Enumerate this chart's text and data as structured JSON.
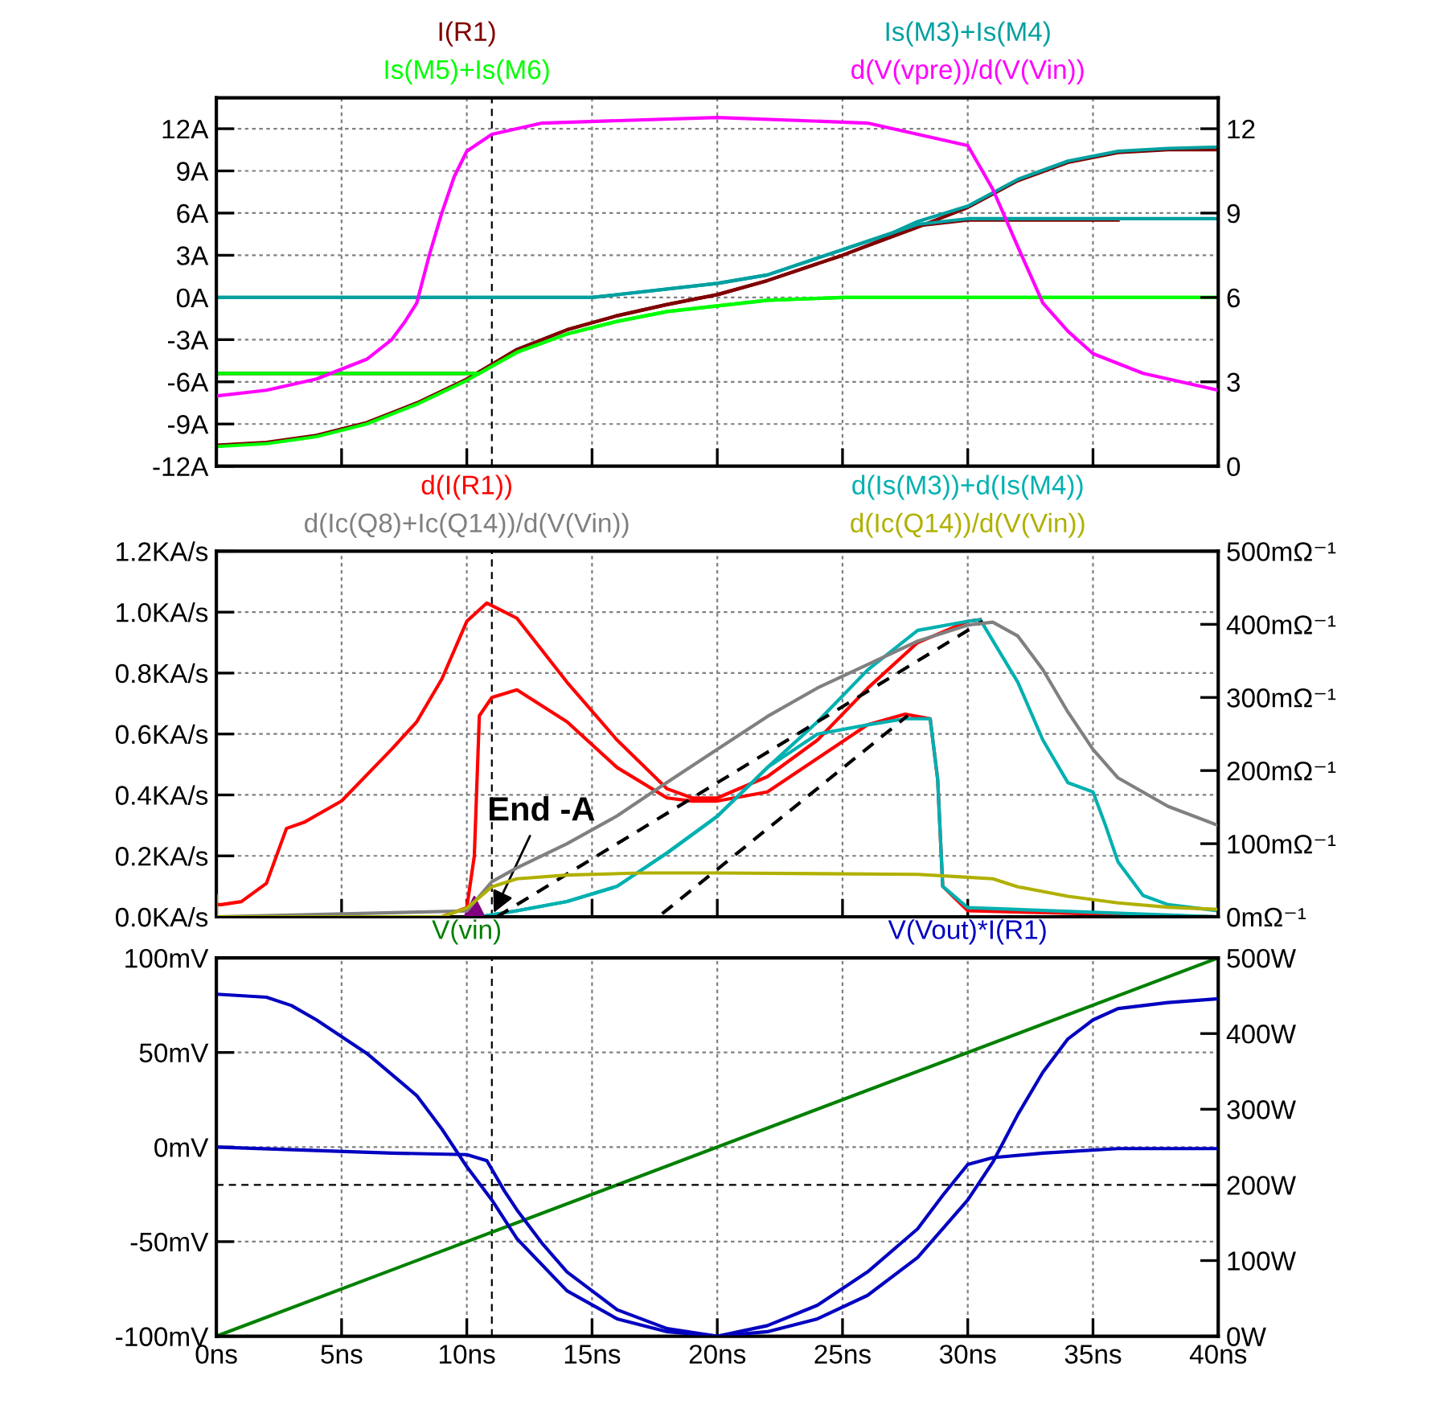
{
  "chart_data": [
    {
      "type": "line",
      "xlim": [
        0,
        40
      ],
      "xticks": [
        {
          "value": 0,
          "label": null
        },
        {
          "value": 5,
          "label": null
        },
        {
          "value": 10,
          "label": null
        },
        {
          "value": 15,
          "label": null
        },
        {
          "value": 20,
          "label": null
        },
        {
          "value": 25,
          "label": null
        },
        {
          "value": 30,
          "label": null
        },
        {
          "value": 35,
          "label": null
        },
        {
          "value": 40,
          "label": null
        }
      ],
      "ylim": [
        -12,
        14.2
      ],
      "yticks": [
        {
          "value": -12,
          "label": "-12A"
        },
        {
          "value": -9,
          "label": "-9A"
        },
        {
          "value": -6,
          "label": "-6A"
        },
        {
          "value": -3,
          "label": "-3A"
        },
        {
          "value": 0,
          "label": "0A"
        },
        {
          "value": 3,
          "label": "3A"
        },
        {
          "value": 6,
          "label": "6A"
        },
        {
          "value": 9,
          "label": "9A"
        },
        {
          "value": 12,
          "label": "12A"
        }
      ],
      "y2lim": [
        0,
        13.1
      ],
      "y2ticks": [
        0,
        3,
        6,
        9,
        12
      ],
      "grid": true,
      "legend": "top",
      "tick_labels": "y",
      "ref_lines": [
        {
          "axis": "x",
          "value": 11,
          "color": "#000000",
          "line_style": "dashed"
        }
      ],
      "series": [
        {
          "name": "I(R1)",
          "color": "#800000",
          "x": [
            0,
            2,
            4,
            6,
            8,
            10,
            12,
            14,
            16,
            18,
            20,
            22,
            25,
            28,
            30,
            32,
            34,
            36,
            38,
            40
          ],
          "values": [
            -10.5,
            -10.3,
            -9.8,
            -8.9,
            -7.5,
            -5.8,
            -3.7,
            -2.3,
            -1.3,
            -0.5,
            0.2,
            1.2,
            3.0,
            5.0,
            6.4,
            8.3,
            9.6,
            10.3,
            10.5,
            10.5
          ]
        },
        {
          "color": "#800000",
          "x": [
            0,
            10.5,
            11,
            12,
            14,
            16,
            18,
            20,
            22,
            25,
            28,
            30,
            36
          ],
          "values": [
            -5.4,
            -5.4,
            -4.8,
            -3.7,
            -2.3,
            -1.3,
            -0.5,
            0.2,
            1.2,
            3.0,
            5.1,
            5.5,
            5.5
          ]
        },
        {
          "name": "Is(M5)+Is(M6)",
          "color": "#00ff00",
          "x": [
            0,
            2,
            4,
            6,
            8,
            10,
            12,
            14,
            16,
            18,
            20,
            22,
            25,
            28,
            40
          ],
          "values": [
            -10.6,
            -10.4,
            -9.9,
            -9.0,
            -7.6,
            -5.9,
            -3.9,
            -2.6,
            -1.7,
            -1.0,
            -0.6,
            -0.2,
            0,
            0,
            0
          ]
        },
        {
          "color": "#00ff00",
          "x": [
            0,
            10.5,
            11,
            12,
            14,
            16,
            18,
            20,
            22,
            25,
            28,
            40
          ],
          "values": [
            -5.4,
            -5.4,
            -4.9,
            -3.9,
            -2.6,
            -1.7,
            -1.0,
            -0.6,
            -0.2,
            0,
            0,
            0
          ]
        },
        {
          "name": "Is(M3)+Is(M4)",
          "color": "#00a0a0",
          "x": [
            0,
            15,
            20,
            22,
            25,
            27,
            28,
            30,
            40
          ],
          "values": [
            0,
            0,
            1.0,
            1.6,
            3.4,
            4.6,
            5.2,
            5.6,
            5.6
          ]
        },
        {
          "color": "#00a0a0",
          "x": [
            0,
            15,
            20,
            22,
            25,
            27,
            28,
            30,
            32,
            34,
            36,
            38,
            40
          ],
          "values": [
            0,
            0,
            1.0,
            1.6,
            3.4,
            4.6,
            5.4,
            6.5,
            8.4,
            9.7,
            10.4,
            10.6,
            10.7
          ]
        },
        {
          "name": "d(V(vpre))/d(V(Vin))",
          "color": "#ff00ff",
          "axis": "y2",
          "x": [
            0,
            2,
            4,
            6,
            7,
            7.5,
            8,
            8.5,
            9,
            9.5,
            10,
            11,
            13,
            20,
            26,
            30,
            31,
            32,
            33,
            34,
            35,
            37,
            40
          ],
          "values": [
            2.5,
            2.7,
            3.1,
            3.8,
            4.5,
            5.1,
            5.8,
            7.5,
            9.0,
            10.3,
            11.2,
            11.8,
            12.2,
            12.4,
            12.2,
            11.4,
            9.85,
            7.8,
            5.8,
            4.8,
            4.0,
            3.3,
            2.7
          ]
        }
      ]
    },
    {
      "type": "line",
      "xlim": [
        0,
        40
      ],
      "xticks": [
        {
          "value": 0,
          "label": null
        },
        {
          "value": 5,
          "label": null
        },
        {
          "value": 10,
          "label": null
        },
        {
          "value": 15,
          "label": null
        },
        {
          "value": 20,
          "label": null
        },
        {
          "value": 25,
          "label": null
        },
        {
          "value": 30,
          "label": null
        },
        {
          "value": 35,
          "label": null
        },
        {
          "value": 40,
          "label": null
        }
      ],
      "ylim": [
        0,
        1.2
      ],
      "yticks": [
        {
          "value": 0,
          "label": "0.0KA/s"
        },
        {
          "value": 0.2,
          "label": "0.2KA/s"
        },
        {
          "value": 0.4,
          "label": "0.4KA/s"
        },
        {
          "value": 0.6,
          "label": "0.6KA/s"
        },
        {
          "value": 0.8,
          "label": "0.8KA/s"
        },
        {
          "value": 1.0,
          "label": "1.0KA/s"
        },
        {
          "value": 1.2,
          "label": "1.2KA/s"
        }
      ],
      "y2lim": [
        0,
        500
      ],
      "y2ticks": [
        {
          "value": 0,
          "label": "0mΩ⁻¹"
        },
        {
          "value": 100,
          "label": "100mΩ⁻¹"
        },
        {
          "value": 200,
          "label": "200mΩ⁻¹"
        },
        {
          "value": 300,
          "label": "300mΩ⁻¹"
        },
        {
          "value": 400,
          "label": "400mΩ⁻¹"
        },
        {
          "value": 500,
          "label": "500mΩ⁻¹"
        }
      ],
      "grid": true,
      "legend": "top",
      "tick_labels": "y",
      "ref_lines": [
        {
          "axis": "x",
          "value": 11,
          "color": "#000000",
          "line_style": "dashed"
        }
      ],
      "annotations": [
        {
          "text": "End -A",
          "x": 11,
          "y": 0
        }
      ],
      "series": [
        {
          "name": "d(I(R1))",
          "color": "#ff0000",
          "x": [
            0,
            0.2,
            1,
            2,
            2.8,
            3.5,
            5,
            7,
            8,
            9,
            10,
            10.8,
            12,
            14,
            16,
            18,
            19,
            20,
            22,
            24,
            26,
            28,
            30,
            30.5
          ],
          "values": [
            0.04,
            0.04,
            0.05,
            0.11,
            0.29,
            0.31,
            0.38,
            0.55,
            0.64,
            0.78,
            0.97,
            1.03,
            0.98,
            0.77,
            0.58,
            0.42,
            0.39,
            0.39,
            0.46,
            0.58,
            0.75,
            0.9,
            0.97,
            0.975
          ]
        },
        {
          "color": "#ff0000",
          "x": [
            0,
            9,
            10,
            10.3,
            10.5,
            11,
            12,
            14,
            16,
            18,
            19,
            20,
            22,
            24,
            26,
            27.5,
            28.5,
            28.8,
            29,
            30,
            40
          ],
          "values": [
            0,
            0,
            0.03,
            0.2,
            0.66,
            0.72,
            0.745,
            0.64,
            0.49,
            0.39,
            0.38,
            0.38,
            0.41,
            0.52,
            0.63,
            0.665,
            0.65,
            0.45,
            0.1,
            0.02,
            0
          ]
        },
        {
          "name": "d(Ic(Q8)+Ic(Q14))/d(V(Vin))",
          "color": "#808080",
          "axis": "y2",
          "x": [
            0,
            10,
            11,
            12,
            14,
            16,
            18,
            20,
            22,
            24,
            26,
            28,
            30,
            31,
            32,
            33,
            34,
            35,
            36,
            38,
            40
          ],
          "values": [
            0,
            8,
            48,
            67,
            100,
            138,
            184,
            229,
            274,
            313,
            345,
            377,
            399,
            403,
            384,
            338,
            280,
            229,
            190,
            151,
            125
          ]
        },
        {
          "name": "d(Is(M3))+d(Is(M4))",
          "color": "#00b0b0",
          "x": [
            0,
            10.5,
            12,
            14,
            16,
            18,
            20,
            22,
            24,
            26,
            28,
            30,
            30.5,
            32,
            33,
            34,
            35,
            35.5,
            36,
            37,
            38,
            40
          ],
          "values": [
            0,
            0,
            0.02,
            0.05,
            0.1,
            0.21,
            0.33,
            0.49,
            0.64,
            0.81,
            0.94,
            0.97,
            0.975,
            0.77,
            0.58,
            0.44,
            0.41,
            0.3,
            0.18,
            0.07,
            0.04,
            0.02
          ]
        },
        {
          "color": "#00b0b0",
          "x": [
            0,
            10.5,
            12,
            14,
            16,
            18,
            20,
            22,
            24,
            26,
            27.5,
            28.5,
            28.8,
            29,
            30,
            40
          ],
          "values": [
            0,
            0,
            0.02,
            0.05,
            0.1,
            0.21,
            0.33,
            0.49,
            0.6,
            0.63,
            0.65,
            0.65,
            0.45,
            0.1,
            0.03,
            0
          ]
        },
        {
          "name": "d(Ic(Q14))/d(V(Vin))",
          "color": "#b0b000",
          "axis": "y2",
          "x": [
            0,
            0,
            0.1,
            9,
            10,
            11,
            12,
            14,
            17,
            20,
            28,
            30,
            31,
            32,
            34,
            36,
            38,
            40
          ],
          "values": [
            29,
            0,
            0,
            0,
            12,
            41,
            52,
            57,
            60,
            60,
            58,
            54,
            52,
            41,
            28,
            19,
            13,
            10
          ]
        },
        {
          "color": "#000000",
          "line_style": "dashed",
          "x": [
            11.2,
            30.6
          ],
          "values": [
            0,
            0.97
          ]
        },
        {
          "color": "#000000",
          "line_style": "dashed",
          "x": [
            17.8,
            27.6
          ],
          "values": [
            0.01,
            0.66
          ]
        },
        {
          "type": "scatter",
          "color": "#800080",
          "marker": "triangle",
          "x": [
            10.3
          ],
          "values": [
            0.03
          ]
        }
      ]
    },
    {
      "type": "line",
      "xlim": [
        0,
        40
      ],
      "xticks": [
        {
          "value": 0,
          "label": "0ns"
        },
        {
          "value": 5,
          "label": "5ns"
        },
        {
          "value": 10,
          "label": "10ns"
        },
        {
          "value": 15,
          "label": "15ns"
        },
        {
          "value": 20,
          "label": "20ns"
        },
        {
          "value": 25,
          "label": "25ns"
        },
        {
          "value": 30,
          "label": "30ns"
        },
        {
          "value": 35,
          "label": "35ns"
        },
        {
          "value": 40,
          "label": "40ns"
        }
      ],
      "ylim": [
        -100,
        100
      ],
      "yticks": [
        {
          "value": -100,
          "label": "-100mV"
        },
        {
          "value": -50,
          "label": "-50mV"
        },
        {
          "value": 0,
          "label": "0mV"
        },
        {
          "value": 50,
          "label": "50mV"
        },
        {
          "value": 100,
          "label": "100mV"
        }
      ],
      "y2lim": [
        0,
        500
      ],
      "y2ticks": [
        {
          "value": 0,
          "label": "0W"
        },
        {
          "value": 100,
          "label": "100W"
        },
        {
          "value": 200,
          "label": "200W"
        },
        {
          "value": 300,
          "label": "300W"
        },
        {
          "value": 400,
          "label": "400W"
        },
        {
          "value": 500,
          "label": "500W"
        }
      ],
      "grid": true,
      "legend": "top",
      "ref_lines": [
        {
          "axis": "x",
          "value": 11,
          "color": "#000000",
          "line_style": "dashed"
        },
        {
          "axis": "y2",
          "value": 200,
          "color": "#000000",
          "line_style": "dashed"
        }
      ],
      "series": [
        {
          "name": "V(vin)",
          "color": "#008000",
          "x": [
            0,
            40
          ],
          "values": [
            -100,
            100
          ]
        },
        {
          "name": "V(Vout)*I(R1)",
          "color": "#0000c0",
          "axis": "y2",
          "x": [
            0,
            2,
            3,
            4,
            6,
            8,
            9,
            10,
            11,
            12,
            14,
            16,
            18,
            20,
            22,
            24,
            26,
            28,
            30,
            31,
            32,
            33,
            34,
            35,
            36,
            38,
            40
          ],
          "values": [
            452,
            448,
            437,
            418,
            374,
            318,
            274,
            224,
            180,
            129,
            60,
            23,
            6,
            0,
            6,
            23,
            54,
            104,
            180,
            230,
            293,
            349,
            393,
            418,
            433,
            441,
            446
          ]
        },
        {
          "color": "#0000c0",
          "axis": "y2",
          "x": [
            0,
            7,
            10,
            10.8,
            11.5,
            12,
            13,
            14,
            16,
            18,
            20,
            22,
            24,
            26,
            28,
            29,
            30,
            31,
            33,
            36,
            40
          ],
          "values": [
            250,
            242,
            240,
            232,
            192,
            167,
            123,
            85,
            35,
            10,
            0,
            14,
            41,
            85,
            142,
            186,
            227,
            236,
            242,
            248,
            248
          ]
        }
      ]
    }
  ]
}
